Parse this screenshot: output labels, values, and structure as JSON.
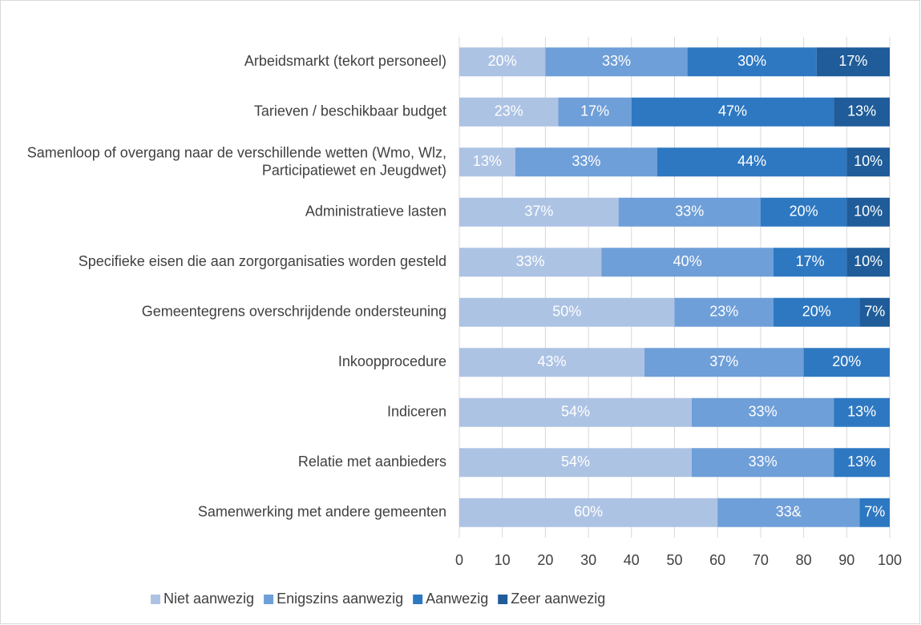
{
  "chart_data": {
    "type": "stacked-barh",
    "categories": [
      "Arbeidsmarkt (tekort personeel)",
      "Tarieven / beschikbaar budget",
      "Samenloop of overgang naar de verschillende wetten (Wmo, Wlz, Participatiewet en Jeugdwet)",
      "Administratieve lasten",
      "Specifieke eisen die aan zorgorganisaties worden gesteld",
      "Gemeentegrens overschrijdende ondersteuning",
      "Inkoopprocedure",
      "Indiceren",
      "Relatie met aanbieders",
      "Samenwerking met andere gemeenten"
    ],
    "series": [
      {
        "name": "Niet aanwezig",
        "color": "#adc3e4",
        "values": [
          20,
          23,
          13,
          37,
          33,
          50,
          43,
          54,
          54,
          60
        ],
        "value_labels": [
          "20%",
          "23%",
          "13%",
          "37%",
          "33%",
          "50%",
          "43%",
          "54%",
          "54%",
          "60%"
        ]
      },
      {
        "name": "Enigszins aanwezig",
        "color": "#6f9fd8",
        "values": [
          33,
          17,
          33,
          33,
          40,
          23,
          37,
          33,
          33,
          33
        ],
        "value_labels": [
          "33%",
          "17%",
          "33%",
          "33%",
          "40%",
          "23%",
          "37%",
          "33%",
          "33%",
          "33&"
        ]
      },
      {
        "name": "Aanwezig",
        "color": "#2e78c2",
        "values": [
          30,
          47,
          44,
          20,
          17,
          20,
          20,
          13,
          13,
          7
        ],
        "value_labels": [
          "30%",
          "47%",
          "44%",
          "20%",
          "17%",
          "20%",
          "20%",
          "13%",
          "13%",
          "7%"
        ]
      },
      {
        "name": "Zeer aanwezig",
        "color": "#1f5c99",
        "values": [
          17,
          13,
          10,
          10,
          10,
          7,
          null,
          null,
          null,
          null
        ],
        "value_labels": [
          "17%",
          "13%",
          "10%",
          "10%",
          "10%",
          "7%",
          null,
          null,
          null,
          null
        ]
      }
    ],
    "xlim": [
      0,
      100
    ],
    "xticks": [
      0,
      10,
      20,
      30,
      40,
      50,
      60,
      70,
      80,
      90,
      100
    ],
    "grid": true,
    "legend": "bottom"
  }
}
